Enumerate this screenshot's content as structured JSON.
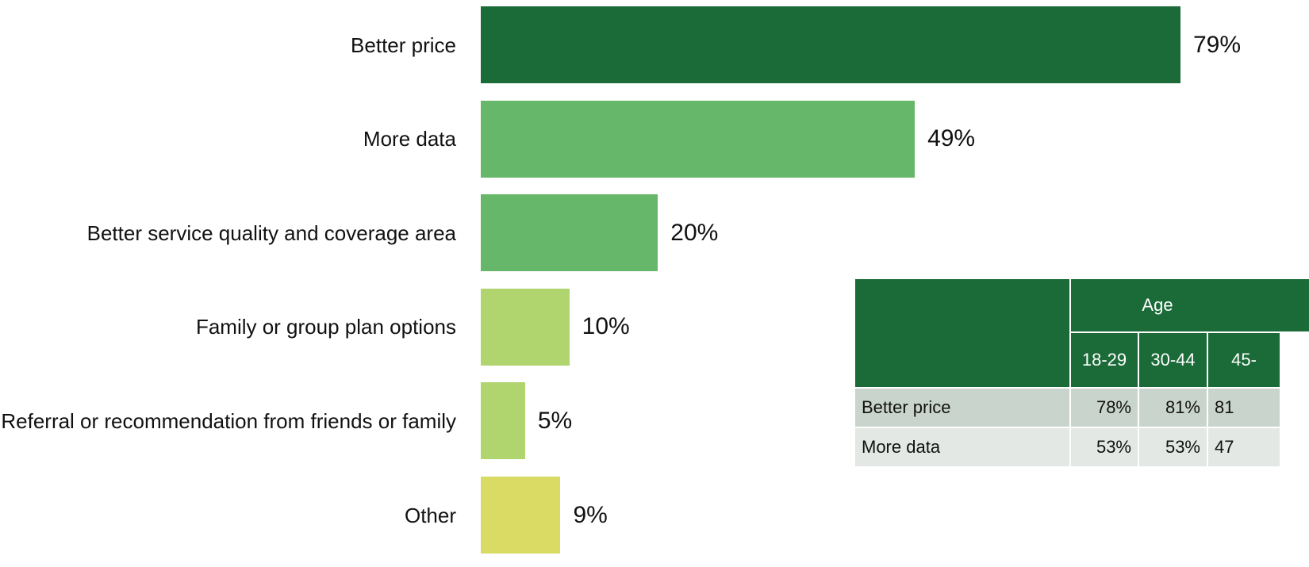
{
  "chart_data": {
    "type": "bar",
    "orientation": "horizontal",
    "categories": [
      "Better price",
      "More data",
      "Better service quality and coverage area",
      "Family or group plan options",
      "Referral or recommendation from friends or family",
      "Other"
    ],
    "values": [
      79,
      49,
      20,
      10,
      5,
      9
    ],
    "value_labels": [
      "79%",
      "49%",
      "20%",
      "10%",
      "5%",
      "9%"
    ],
    "colors": [
      "#1a6b37",
      "#66b76a",
      "#66b76a",
      "#b0d56f",
      "#b0d56f",
      "#d9db64"
    ]
  },
  "table": {
    "group_header": "Age",
    "columns": [
      "18-29",
      "30-44",
      "45-"
    ],
    "rows": [
      {
        "label": "Better price",
        "values": [
          "78%",
          "81%",
          "81"
        ]
      },
      {
        "label": "More data",
        "values": [
          "53%",
          "53%",
          "47"
        ]
      }
    ]
  }
}
